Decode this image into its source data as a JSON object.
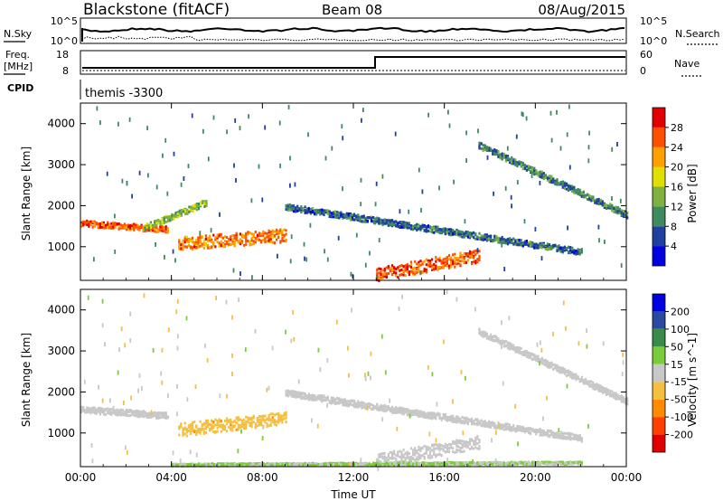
{
  "header": {
    "station": "Blackstone (fitACF)",
    "beam": "Beam 08",
    "date": "08/Aug/2015"
  },
  "top_panels": {
    "nsky_label": "N.Sky",
    "nsky_ticks": [
      "10^5",
      "10^0"
    ],
    "nsearch_ticks": [
      "10^5",
      "10^0"
    ],
    "nsearch_label": "N.Search",
    "freq_label_line1": "Freq.",
    "freq_label_line2": "[MHz]",
    "freq_ticks": [
      "18",
      "8"
    ],
    "nave_ticks": [
      "60",
      "0"
    ],
    "nave_label": "Nave",
    "cpid_label": "CPID",
    "cpid_value": "themis -3300"
  },
  "colors": {
    "power": [
      "#0000e0",
      "#20409f",
      "#3f8a5f",
      "#7fb040",
      "#e0e000",
      "#ffa000",
      "#ff5000",
      "#e00000"
    ],
    "velocity": [
      "#e00000",
      "#ff4000",
      "#ff8c00",
      "#f5c040",
      "#c8c8c8",
      "#7acc3c",
      "#3a8a4a",
      "#2a4aa0",
      "#0000e0"
    ]
  },
  "chart_data": [
    {
      "type": "heatmap",
      "title": "",
      "xlabel": "",
      "ylabel": "Slant Range [km]",
      "x_ticks": [
        "00:00",
        "04:00",
        "08:00",
        "12:00",
        "16:00",
        "20:00",
        "00:00"
      ],
      "y_ticks": [
        "1000",
        "2000",
        "3000",
        "4000"
      ],
      "xlim": [
        0,
        24
      ],
      "ylim": [
        180,
        4500
      ],
      "colorbar": {
        "label": "Power [dB]",
        "ticks": [
          "4",
          "8",
          "12",
          "16",
          "20",
          "24",
          "28"
        ],
        "range": [
          0,
          32
        ]
      },
      "features": [
        {
          "name": "early band",
          "t": [
            0.0,
            3.8
          ],
          "range_km": [
            1600,
            1450
          ],
          "value": 25
        },
        {
          "name": "rising band",
          "t": [
            2.8,
            5.5
          ],
          "range_km": [
            1500,
            2100
          ],
          "value": 14
        },
        {
          "name": "morning blob",
          "t": [
            4.3,
            9.0
          ],
          "range_km": [
            1100,
            1300
          ],
          "value": 24
        },
        {
          "name": "afternoon blob",
          "t": [
            13.0,
            17.5
          ],
          "range_km": [
            350,
            800
          ],
          "value": 26
        },
        {
          "name": "long arc",
          "t": [
            9.0,
            22.0
          ],
          "range_km": [
            2000,
            900
          ],
          "value": 8
        },
        {
          "name": "evening arc",
          "t": [
            17.5,
            24.0
          ],
          "range_km": [
            3500,
            1800
          ],
          "value": 9
        }
      ]
    },
    {
      "type": "heatmap",
      "title": "",
      "xlabel": "Time UT",
      "ylabel": "Slant Range [km]",
      "x_ticks": [
        "00:00",
        "04:00",
        "08:00",
        "12:00",
        "16:00",
        "20:00",
        "00:00"
      ],
      "y_ticks": [
        "1000",
        "2000",
        "3000",
        "4000"
      ],
      "xlim": [
        0,
        24
      ],
      "ylim": [
        180,
        4500
      ],
      "colorbar": {
        "label": "Velocity [m s^-1]",
        "ticks": [
          "-200",
          "-100",
          "-50",
          "-15",
          "15",
          "50",
          "100",
          "200"
        ],
        "range": [
          -250,
          250
        ]
      },
      "features": [
        {
          "name": "early band",
          "t": [
            0.0,
            3.8
          ],
          "range_km": [
            1600,
            1450
          ],
          "value": 0
        },
        {
          "name": "morning blob",
          "t": [
            4.3,
            9.0
          ],
          "range_km": [
            1100,
            1400
          ],
          "value": -60
        },
        {
          "name": "afternoon blob",
          "t": [
            13.0,
            17.5
          ],
          "range_km": [
            350,
            800
          ],
          "value": 0
        },
        {
          "name": "ground band",
          "t": [
            4.0,
            22.0
          ],
          "range_km": [
            250,
            300
          ],
          "value": 30
        },
        {
          "name": "long arc",
          "t": [
            9.0,
            22.0
          ],
          "range_km": [
            2000,
            900
          ],
          "value": 0
        },
        {
          "name": "evening arc",
          "t": [
            17.5,
            24.0
          ],
          "range_km": [
            3500,
            1800
          ],
          "value": 0
        }
      ]
    }
  ]
}
